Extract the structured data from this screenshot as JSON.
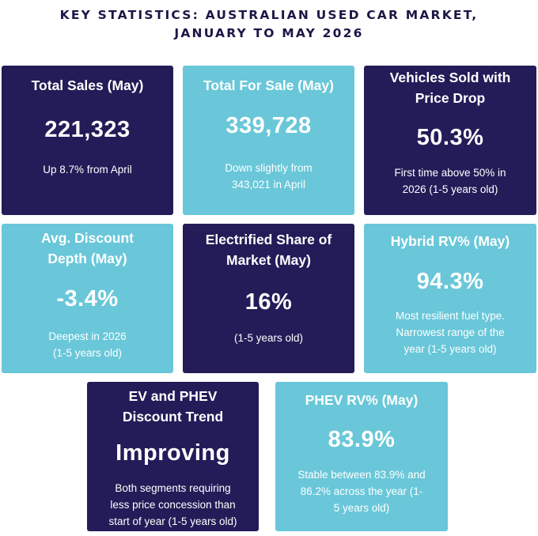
{
  "title": {
    "line1": "KEY STATISTICS: AUSTRALIAN USED CAR MARKET,",
    "line2": "JANUARY TO MAY 2026"
  },
  "cards": [
    {
      "theme": "dark",
      "head_lines": [
        "Total Sales (May)"
      ],
      "value": "221,323",
      "note_lines": [
        "Up 8.7% from April"
      ]
    },
    {
      "theme": "light",
      "head_lines": [
        "Total For Sale (May)"
      ],
      "value": "339,728",
      "note_lines": [
        "Down slightly from",
        "343,021 in April"
      ]
    },
    {
      "theme": "dark",
      "head_lines": [
        "Vehicles Sold with",
        "Price Drop"
      ],
      "value": "50.3%",
      "note_lines": [
        "First time above 50% in",
        "2026 (1-5 years old)"
      ]
    },
    {
      "theme": "light",
      "head_lines": [
        "Avg. Discount",
        "Depth (May)"
      ],
      "value": "-3.4%",
      "note_lines": [
        "Deepest in 2026",
        "(1-5 years old)"
      ]
    },
    {
      "theme": "dark",
      "head_lines": [
        "Electrified Share of",
        "Market (May)"
      ],
      "value": "16%",
      "note_lines": [
        "(1-5 years old)"
      ]
    },
    {
      "theme": "light",
      "head_lines": [
        "Hybrid RV% (May)"
      ],
      "value": "94.3%",
      "note_lines": [
        "Most resilient fuel type.",
        "Narrowest range of the",
        "year (1-5 years old)"
      ]
    },
    {
      "theme": "dark",
      "head_lines": [
        "EV and PHEV",
        "Discount Trend"
      ],
      "value": "Improving",
      "note_lines": [
        "Both segments requiring",
        "less price concession than",
        "start of year (1-5 years old)"
      ]
    },
    {
      "theme": "light",
      "head_lines": [
        "PHEV RV% (May)"
      ],
      "value": "83.9%",
      "note_lines": [
        "Stable between 83.9% and",
        "86.2% across the year (1-",
        "5 years old)"
      ]
    }
  ],
  "colors": {
    "dark_card": "#231c58",
    "light_card": "#69c7d9",
    "title_text": "#1b1747",
    "card_text": "#ffffff"
  }
}
